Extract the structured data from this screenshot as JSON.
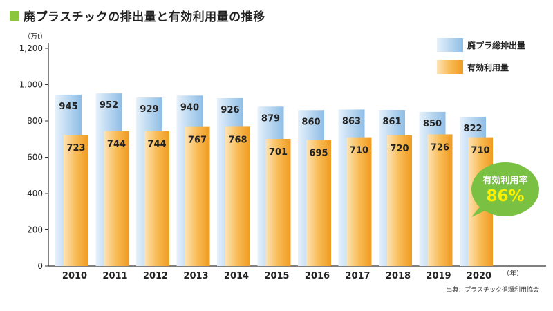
{
  "title": "廃プラスチックの排出量と有効利用量の推移",
  "source": "出典：プラスチック循環利用協会",
  "colors": {
    "title_mark": "#8cc63f",
    "total_bar": "#b9d7f0",
    "used_bar": "#f7b84f",
    "bubble": "#7ac043"
  },
  "bubble": {
    "label": "有効利用率",
    "value": "86%"
  },
  "chart_data": {
    "type": "bar",
    "title": "廃プラスチックの排出量と有効利用量の推移",
    "unit_y": "（万t）",
    "unit_x": "（年）",
    "categories": [
      "2010",
      "2011",
      "2012",
      "2013",
      "2014",
      "2015",
      "2016",
      "2017",
      "2018",
      "2019",
      "2020"
    ],
    "series": [
      {
        "name": "廃プラ総排出量",
        "values": [
          945,
          952,
          929,
          940,
          926,
          879,
          860,
          863,
          861,
          850,
          822
        ]
      },
      {
        "name": "有効利用量",
        "values": [
          723,
          744,
          744,
          767,
          768,
          701,
          695,
          710,
          720,
          726,
          710
        ]
      }
    ],
    "yticks": [
      "0",
      "200",
      "400",
      "600",
      "800",
      "1,000",
      "1,200"
    ],
    "ylim": [
      0,
      1200
    ],
    "legend_position": "top-right",
    "grid": false
  }
}
